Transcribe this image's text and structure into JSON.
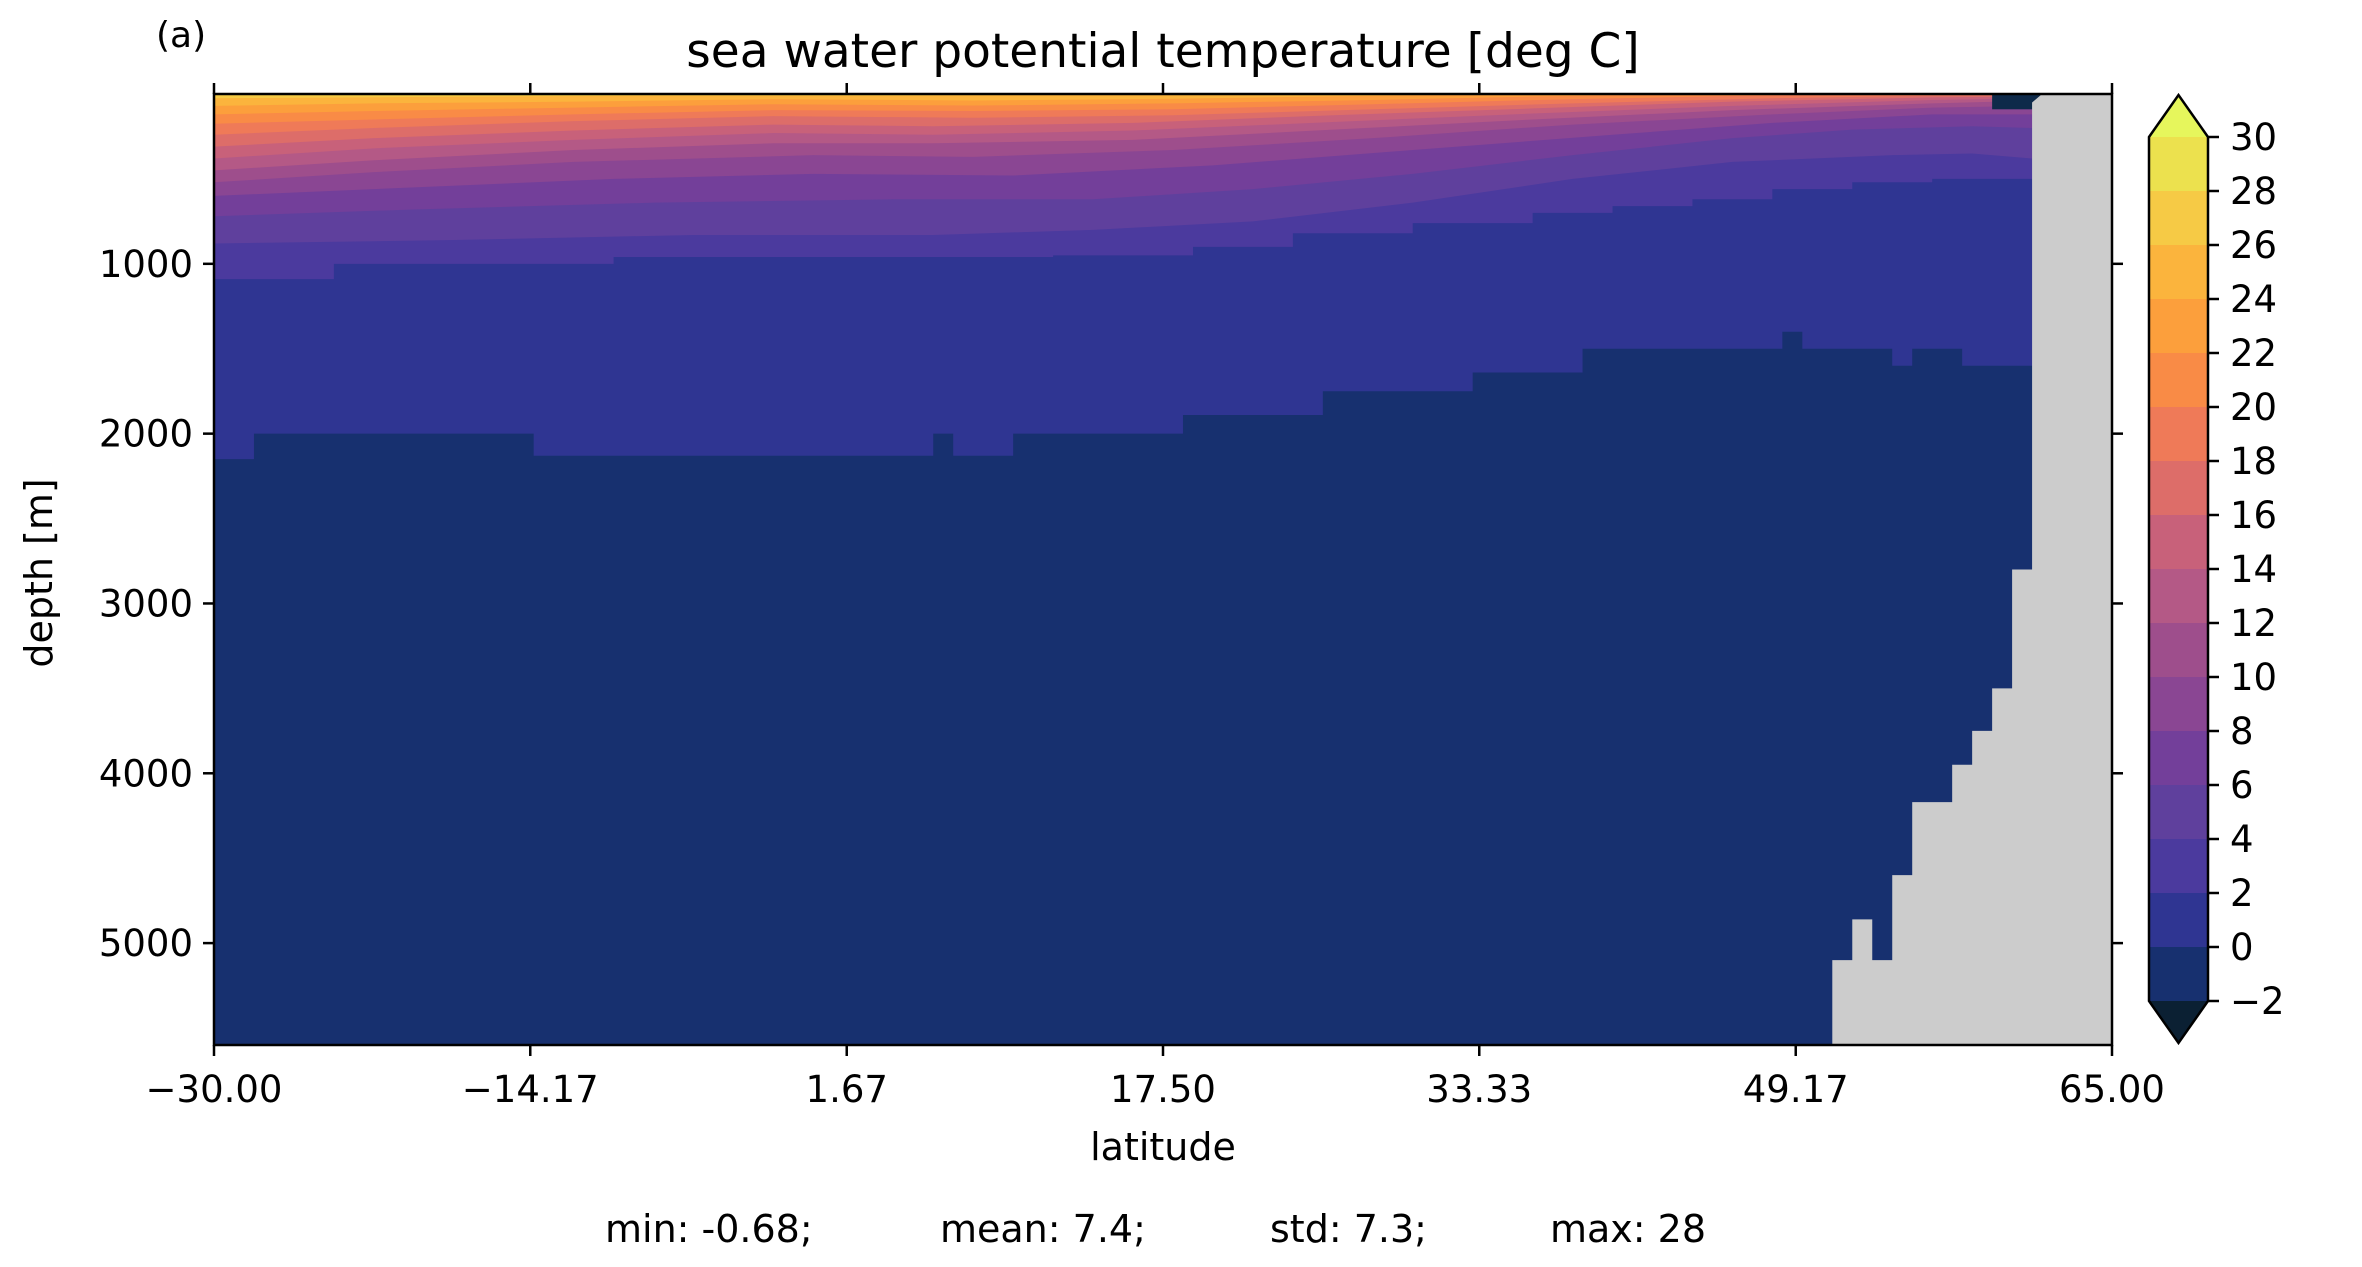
{
  "panel_label": "(a)",
  "stats": {
    "min": "min: -0.68;",
    "mean": "mean: 7.4;",
    "std": "std: 7.3;",
    "max": "max: 28"
  },
  "colors": {
    "land": "#cccccc",
    "levels": [
      "#0e2a4a",
      "#17306f",
      "#2f3592",
      "#4b3a9e",
      "#5f409d",
      "#733f9a",
      "#8a4693",
      "#9e4e8c",
      "#b45986",
      "#c8617a",
      "#dd6d69",
      "#ef7a58",
      "#f98b46",
      "#fc9f3c",
      "#fbb43d",
      "#f6ca45",
      "#ece14e",
      "#e6f65c"
    ],
    "under": "#0b2033",
    "over": "#e6f65c"
  },
  "chart_data": {
    "type": "heatmap",
    "title": "sea water potential temperature [deg C]",
    "xlabel": "latitude",
    "ylabel": "depth [m]",
    "xlim": [
      -30.0,
      65.0
    ],
    "ylim_depth": [
      0,
      5600
    ],
    "y_inverted": true,
    "x_ticks": [
      "−30.00",
      "−14.17",
      "1.67",
      "17.50",
      "33.33",
      "49.17",
      "65.00"
    ],
    "x_tick_values": [
      -30.0,
      -14.17,
      1.67,
      17.5,
      33.33,
      49.17,
      65.0
    ],
    "y_ticks": [
      "1000",
      "2000",
      "3000",
      "4000",
      "5000"
    ],
    "y_tick_values": [
      1000,
      2000,
      3000,
      4000,
      5000
    ],
    "colorbar": {
      "levels": [
        -2,
        0,
        2,
        4,
        6,
        8,
        10,
        12,
        14,
        16,
        18,
        20,
        22,
        24,
        26,
        28,
        30
      ],
      "tick_labels": [
        "−2",
        "0",
        "2",
        "4",
        "6",
        "8",
        "10",
        "12",
        "14",
        "16",
        "18",
        "20",
        "22",
        "24",
        "26",
        "28",
        "30"
      ],
      "extend": "both"
    },
    "isotherms": [
      {
        "level": 2,
        "points": [
          [
            -30,
            2150
          ],
          [
            -28,
            2150
          ],
          [
            -28,
            2000
          ],
          [
            -14,
            2000
          ],
          [
            -14,
            2130
          ],
          [
            6,
            2130
          ],
          [
            6,
            2000
          ],
          [
            7,
            2000
          ],
          [
            7,
            2130
          ],
          [
            10,
            2130
          ],
          [
            10,
            2000
          ],
          [
            18.5,
            2000
          ],
          [
            18.5,
            1890
          ],
          [
            25.5,
            1890
          ],
          [
            25.5,
            1750
          ],
          [
            33,
            1750
          ],
          [
            33,
            1640
          ],
          [
            38.5,
            1640
          ],
          [
            38.5,
            1500
          ],
          [
            48.5,
            1500
          ],
          [
            48.5,
            1400
          ],
          [
            49.5,
            1400
          ],
          [
            49.5,
            1500
          ],
          [
            54,
            1500
          ],
          [
            54,
            1600
          ],
          [
            55,
            1600
          ],
          [
            55,
            1500
          ],
          [
            57.5,
            1500
          ],
          [
            57.5,
            1600
          ],
          [
            61,
            1600
          ]
        ]
      },
      {
        "level": 4,
        "points": [
          [
            -30,
            1090
          ],
          [
            -24,
            1090
          ],
          [
            -24,
            1000
          ],
          [
            -10,
            1000
          ],
          [
            -10,
            960
          ],
          [
            12,
            960
          ],
          [
            12,
            950
          ],
          [
            19,
            950
          ],
          [
            19,
            900
          ],
          [
            24,
            900
          ],
          [
            24,
            820
          ],
          [
            30,
            820
          ],
          [
            30,
            760
          ],
          [
            36,
            760
          ],
          [
            36,
            700
          ],
          [
            40,
            700
          ],
          [
            40,
            660
          ],
          [
            44,
            660
          ],
          [
            44,
            620
          ],
          [
            48,
            620
          ],
          [
            48,
            560
          ],
          [
            52,
            560
          ],
          [
            52,
            520
          ],
          [
            56,
            520
          ],
          [
            56,
            500
          ],
          [
            61,
            500
          ]
        ]
      },
      {
        "level": 6,
        "points": [
          [
            -30,
            880
          ],
          [
            -18,
            860
          ],
          [
            -6,
            830
          ],
          [
            6,
            830
          ],
          [
            14,
            800
          ],
          [
            22,
            750
          ],
          [
            30,
            640
          ],
          [
            38,
            500
          ],
          [
            46,
            400
          ],
          [
            54,
            360
          ],
          [
            58,
            350
          ],
          [
            61,
            380
          ]
        ]
      },
      {
        "level": 8,
        "points": [
          [
            -30,
            720
          ],
          [
            -20,
            680
          ],
          [
            -8,
            640
          ],
          [
            4,
            620
          ],
          [
            14,
            620
          ],
          [
            22,
            560
          ],
          [
            30,
            470
          ],
          [
            38,
            360
          ],
          [
            46,
            260
          ],
          [
            52,
            210
          ],
          [
            58,
            190
          ],
          [
            61,
            200
          ]
        ]
      },
      {
        "level": 10,
        "points": [
          [
            -30,
            600
          ],
          [
            -20,
            550
          ],
          [
            -10,
            500
          ],
          [
            0,
            470
          ],
          [
            10,
            480
          ],
          [
            20,
            420
          ],
          [
            30,
            330
          ],
          [
            40,
            240
          ],
          [
            48,
            170
          ],
          [
            56,
            120
          ],
          [
            61,
            120
          ]
        ]
      },
      {
        "level": 12,
        "points": [
          [
            -30,
            520
          ],
          [
            -22,
            460
          ],
          [
            -12,
            400
          ],
          [
            0,
            360
          ],
          [
            8,
            370
          ],
          [
            18,
            330
          ],
          [
            28,
            260
          ],
          [
            38,
            180
          ],
          [
            48,
            120
          ],
          [
            56,
            80
          ],
          [
            61,
            70
          ]
        ]
      },
      {
        "level": 14,
        "points": [
          [
            -30,
            450
          ],
          [
            -22,
            390
          ],
          [
            -12,
            330
          ],
          [
            -2,
            290
          ],
          [
            6,
            290
          ],
          [
            16,
            270
          ],
          [
            26,
            210
          ],
          [
            36,
            150
          ],
          [
            46,
            95
          ],
          [
            56,
            55
          ],
          [
            61,
            40
          ]
        ]
      },
      {
        "level": 16,
        "points": [
          [
            -30,
            380
          ],
          [
            -22,
            320
          ],
          [
            -12,
            270
          ],
          [
            -2,
            230
          ],
          [
            6,
            240
          ],
          [
            16,
            215
          ],
          [
            26,
            165
          ],
          [
            36,
            115
          ],
          [
            46,
            70
          ],
          [
            56,
            35
          ],
          [
            61,
            25
          ]
        ]
      },
      {
        "level": 18,
        "points": [
          [
            -30,
            310
          ],
          [
            -22,
            260
          ],
          [
            -12,
            215
          ],
          [
            -2,
            180
          ],
          [
            6,
            190
          ],
          [
            16,
            170
          ],
          [
            26,
            125
          ],
          [
            36,
            85
          ],
          [
            46,
            45
          ],
          [
            56,
            20
          ],
          [
            61,
            15
          ]
        ]
      },
      {
        "level": 20,
        "points": [
          [
            -30,
            240
          ],
          [
            -22,
            200
          ],
          [
            -12,
            160
          ],
          [
            -2,
            130
          ],
          [
            8,
            140
          ],
          [
            18,
            125
          ],
          [
            28,
            90
          ],
          [
            38,
            55
          ],
          [
            48,
            25
          ],
          [
            56,
            10
          ],
          [
            61,
            8
          ]
        ]
      },
      {
        "level": 22,
        "points": [
          [
            -30,
            175
          ],
          [
            -22,
            150
          ],
          [
            -12,
            120
          ],
          [
            -2,
            95
          ],
          [
            8,
            100
          ],
          [
            18,
            90
          ],
          [
            28,
            60
          ],
          [
            38,
            30
          ],
          [
            46,
            12
          ],
          [
            52,
            4
          ],
          [
            61,
            4
          ]
        ]
      },
      {
        "level": 24,
        "points": [
          [
            -30,
            120
          ],
          [
            -22,
            100
          ],
          [
            -12,
            80
          ],
          [
            -2,
            60
          ],
          [
            8,
            68
          ],
          [
            18,
            55
          ],
          [
            28,
            35
          ],
          [
            36,
            15
          ],
          [
            42,
            5
          ],
          [
            50,
            2
          ],
          [
            61,
            2
          ]
        ]
      },
      {
        "level": 26,
        "points": [
          [
            -30,
            70
          ],
          [
            -22,
            55
          ],
          [
            -12,
            45
          ],
          [
            -2,
            30
          ],
          [
            8,
            38
          ],
          [
            18,
            28
          ],
          [
            26,
            14
          ],
          [
            32,
            5
          ],
          [
            40,
            2
          ],
          [
            61,
            1
          ]
        ]
      },
      {
        "level": 28,
        "points": [
          [
            -30,
            25
          ],
          [
            -20,
            18
          ],
          [
            -8,
            10
          ],
          [
            4,
            10
          ],
          [
            12,
            6
          ],
          [
            20,
            4
          ],
          [
            28,
            2
          ],
          [
            61,
            0
          ]
        ]
      }
    ],
    "land": [
      [
        51,
        5600
      ],
      [
        51,
        5100
      ],
      [
        52,
        5100
      ],
      [
        52,
        4860
      ],
      [
        53,
        4860
      ],
      [
        53,
        5100
      ],
      [
        54,
        5100
      ],
      [
        54,
        4860
      ],
      [
        54,
        4600
      ],
      [
        55,
        4600
      ],
      [
        55,
        4170
      ],
      [
        57,
        4170
      ],
      [
        57,
        3950
      ],
      [
        58,
        3950
      ],
      [
        58,
        3750
      ],
      [
        59,
        3750
      ],
      [
        59,
        3500
      ],
      [
        60,
        3500
      ],
      [
        60,
        2800
      ],
      [
        61,
        2800
      ],
      [
        61,
        50
      ],
      [
        61.5,
        0
      ],
      [
        65,
        0
      ],
      [
        65,
        5600
      ]
    ],
    "surface_cold_patch": {
      "x_range": [
        59,
        61.5
      ],
      "depth_range": [
        0,
        90
      ]
    }
  }
}
